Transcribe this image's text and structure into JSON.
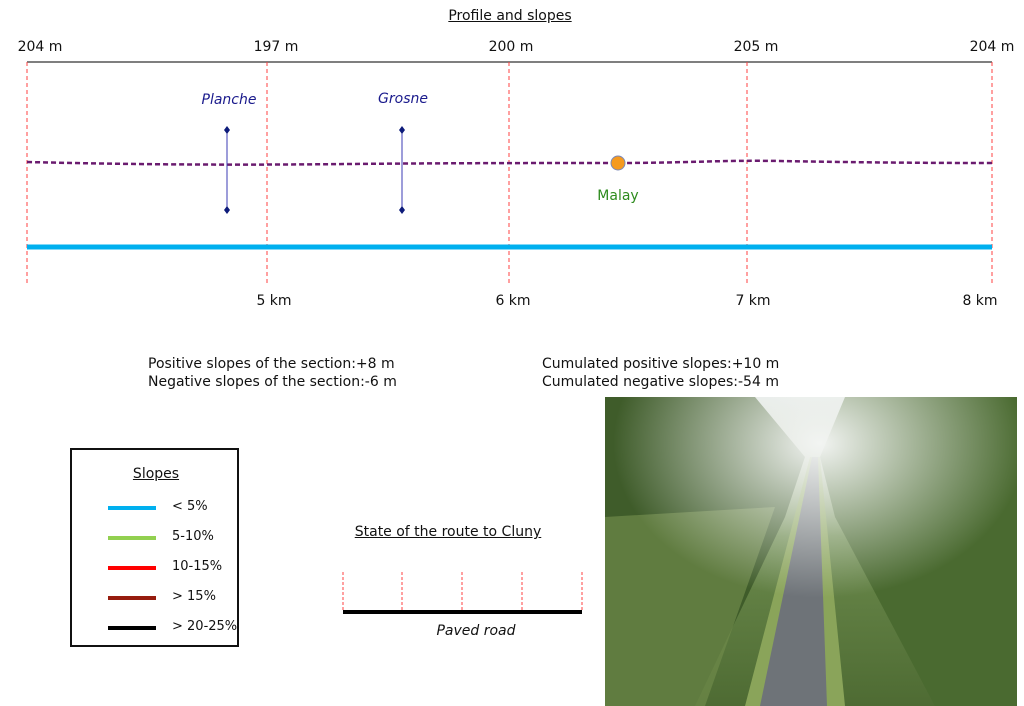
{
  "title": "Profile and slopes",
  "elevation_labels": [
    "204 m",
    "197 m",
    "200 m",
    "205 m",
    "204 m"
  ],
  "distance_labels": [
    "5 km",
    "6 km",
    "7 km",
    "8 km"
  ],
  "markers": [
    {
      "name": "Planche",
      "color": "#1a1a8c"
    },
    {
      "name": "Grosne",
      "color": "#1a1a8c"
    }
  ],
  "town": {
    "name": "Malay",
    "color": "#2e8b1e",
    "dot_color": "#f59a1f"
  },
  "colors": {
    "profile": "#6a1b6f",
    "slope_line": "#00b0ef",
    "grid": "#ff4040"
  },
  "stats": {
    "section_positive": "Positive slopes of the section:+8 m",
    "section_negative": "Negative slopes of the section:-6 m",
    "cumulated_positive": "Cumulated positive slopes:+10 m",
    "cumulated_negative": "Cumulated negative slopes:-54 m"
  },
  "legend": {
    "title": "Slopes",
    "items": [
      {
        "label": "< 5%",
        "color": "#00b0ef"
      },
      {
        "label": "5-10%",
        "color": "#92d050"
      },
      {
        "label": "10-15%",
        "color": "#ff0000"
      },
      {
        "label": "> 15%",
        "color": "#961c0e"
      },
      {
        "label": "> 20-25%",
        "color": "#000000"
      }
    ]
  },
  "route_state": {
    "title": "State of the route to Cluny",
    "surface": "Paved road"
  }
}
